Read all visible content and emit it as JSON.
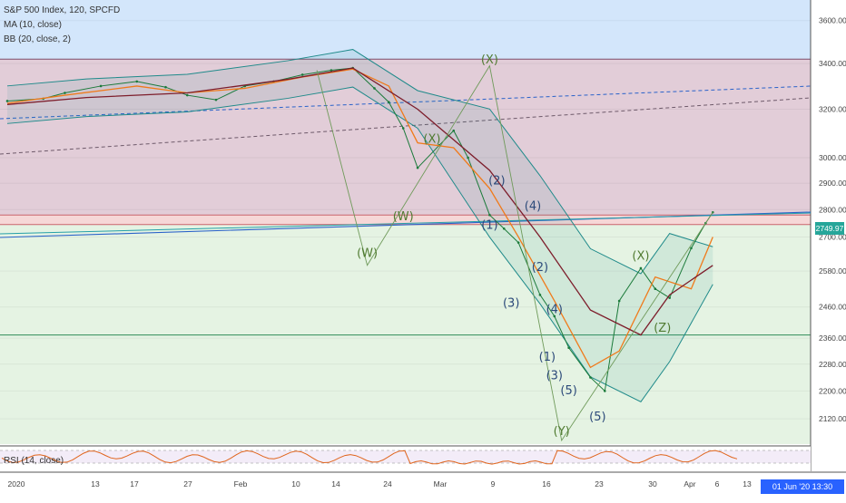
{
  "header": {
    "title": "S&P 500 Index, 120, SPCFD",
    "indicator_ma": "MA (10, close)",
    "indicator_bb": "BB (20, close, 2)",
    "rsi_label": "RSI (14, close)"
  },
  "price_badge": "2749.97",
  "time_badge": "01 Jun '20  13:30",
  "colors": {
    "price_line": "#1b7a3a",
    "ma": "#f07a1a",
    "bb_basis": "#7d1d2b",
    "bb_band": "#1f8a8a",
    "wave_label": "#2c4a7a",
    "corrective_label": "#4f7a30",
    "rsi": "#e0651c"
  },
  "chart_data": {
    "type": "line",
    "title": "S&P 500 Index, 120, SPCFD",
    "y_scale": "log",
    "ylim": [
      2050,
      3700
    ],
    "y_ticks": [
      3600,
      3400,
      3200,
      3000,
      2900,
      2800,
      2700,
      2580,
      2460,
      2360,
      2280,
      2200,
      2120
    ],
    "x_ticks": [
      "2020",
      "13",
      "17",
      "27",
      "Feb",
      "10",
      "14",
      "24",
      "Mar",
      "9",
      "16",
      "23",
      "30",
      "Apr",
      "6",
      "13"
    ],
    "zones": [
      {
        "name": "upper",
        "from": 3420,
        "to": 3700,
        "color": "#d3e6fb"
      },
      {
        "name": "resistance",
        "from": 2780,
        "to": 3420,
        "color": "#e2cdd8"
      },
      {
        "name": "thin-band",
        "from": 2745,
        "to": 2780,
        "color": "#f6d7d7"
      },
      {
        "name": "support",
        "from": 2050,
        "to": 2745,
        "color": "#e5f3e3"
      }
    ],
    "series": [
      {
        "name": "close",
        "x": [
          "Jan 2",
          "Jan 7",
          "Jan 10",
          "Jan 15",
          "Jan 20",
          "Jan 24",
          "Jan 27",
          "Jan 31",
          "Feb 4",
          "Feb 8",
          "Feb 12",
          "Feb 16",
          "Feb 19",
          "Feb 22",
          "Feb 24",
          "Feb 26",
          "Feb 28",
          "Mar 2",
          "Mar 4",
          "Mar 6",
          "Mar 9",
          "Mar 11",
          "Mar 13",
          "Mar 16",
          "Mar 18",
          "Mar 20",
          "Mar 23",
          "Mar 25",
          "Mar 27",
          "Mar 30",
          "Apr 1",
          "Apr 3",
          "Apr 6",
          "Apr 8",
          "Apr 9"
        ],
        "values": [
          3235,
          3245,
          3270,
          3300,
          3320,
          3295,
          3260,
          3240,
          3300,
          3320,
          3350,
          3370,
          3380,
          3290,
          3230,
          3120,
          2960,
          3050,
          3110,
          3000,
          2780,
          2730,
          2680,
          2500,
          2430,
          2330,
          2240,
          2200,
          2480,
          2590,
          2520,
          2490,
          2660,
          2750,
          2790
        ]
      },
      {
        "name": "MA (10, close)",
        "x": [
          "Jan 2",
          "Jan 10",
          "Jan 20",
          "Jan 27",
          "Feb 4",
          "Feb 12",
          "Feb 19",
          "Feb 24",
          "Feb 28",
          "Mar 4",
          "Mar 9",
          "Mar 13",
          "Mar 18",
          "Mar 23",
          "Mar 27",
          "Apr 1",
          "Apr 6",
          "Apr 9"
        ],
        "values": [
          3225,
          3260,
          3300,
          3270,
          3290,
          3340,
          3375,
          3300,
          3060,
          3040,
          2880,
          2700,
          2480,
          2270,
          2320,
          2560,
          2520,
          2700
        ]
      },
      {
        "name": "BB basis",
        "x": [
          "Jan 2",
          "Jan 13",
          "Jan 27",
          "Feb 10",
          "Feb 19",
          "Feb 28",
          "Mar 9",
          "Mar 16",
          "Mar 23",
          "Mar 30",
          "Apr 3",
          "Apr 9"
        ],
        "values": [
          3220,
          3250,
          3270,
          3330,
          3380,
          3200,
          2950,
          2700,
          2450,
          2370,
          2500,
          2600
        ]
      }
    ],
    "wave_labels": [
      {
        "text": "(W)",
        "x": "Feb 21",
        "y": 2630,
        "style": "corrective"
      },
      {
        "text": "(W)",
        "x": "Feb 26",
        "y": 2760,
        "style": "corrective"
      },
      {
        "text": "(X)",
        "x": "Mar 1",
        "y": 3060,
        "style": "corrective"
      },
      {
        "text": "(X)",
        "x": "Mar 9",
        "y": 3400,
        "style": "corrective"
      },
      {
        "text": "(2)",
        "x": "Mar 10",
        "y": 2895,
        "style": "impulse"
      },
      {
        "text": "(1)",
        "x": "Mar 9",
        "y": 2730,
        "style": "impulse"
      },
      {
        "text": "(4)",
        "x": "Mar 15",
        "y": 2800,
        "style": "impulse"
      },
      {
        "text": "(2)",
        "x": "Mar 16",
        "y": 2580,
        "style": "impulse"
      },
      {
        "text": "(3)",
        "x": "Mar 12",
        "y": 2460,
        "style": "impulse"
      },
      {
        "text": "(4)",
        "x": "Mar 18",
        "y": 2440,
        "style": "impulse"
      },
      {
        "text": "(1)",
        "x": "Mar 17",
        "y": 2290,
        "style": "impulse"
      },
      {
        "text": "(3)",
        "x": "Mar 18",
        "y": 2235,
        "style": "impulse"
      },
      {
        "text": "(5)",
        "x": "Mar 20",
        "y": 2190,
        "style": "impulse"
      },
      {
        "text": "(5)",
        "x": "Mar 24",
        "y": 2115,
        "style": "impulse"
      },
      {
        "text": "(Y)",
        "x": "Mar 19",
        "y": 2075,
        "style": "corrective"
      },
      {
        "text": "(X)",
        "x": "Mar 30",
        "y": 2620,
        "style": "corrective"
      },
      {
        "text": "(Z)",
        "x": "Apr 2",
        "y": 2380,
        "style": "corrective"
      }
    ],
    "rsi": {
      "name": "RSI (14, close)",
      "levels": [
        70,
        30
      ]
    }
  }
}
